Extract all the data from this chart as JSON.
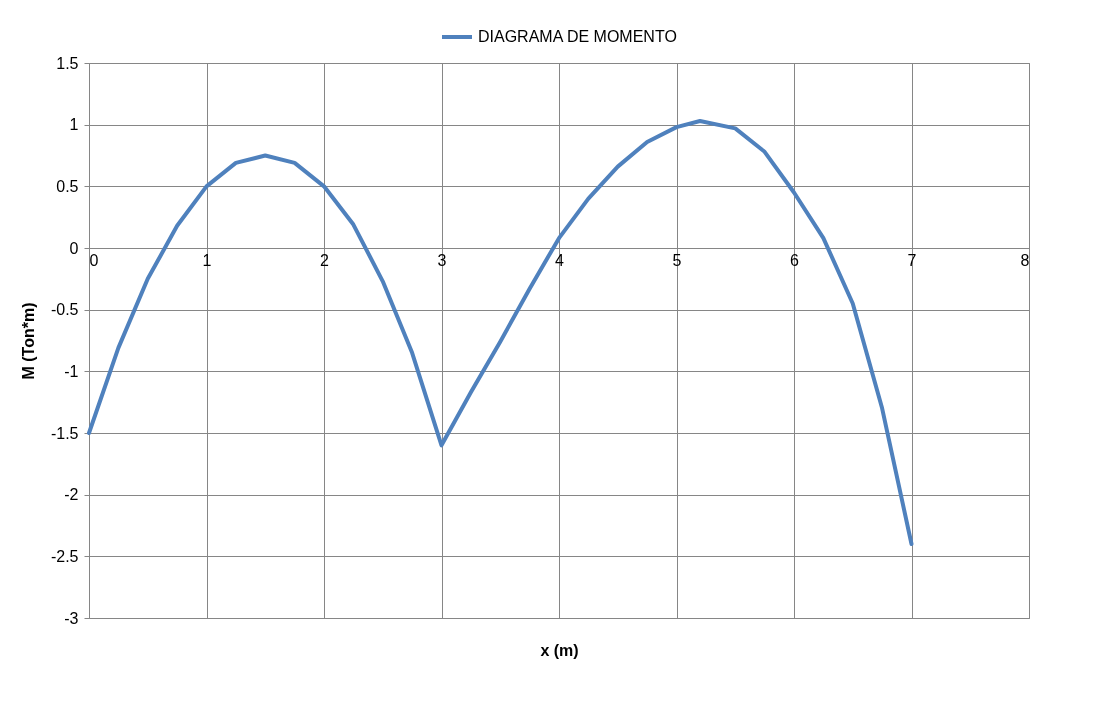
{
  "chart_data": {
    "type": "line",
    "xlabel": "x (m)",
    "ylabel": "M (Ton*m)",
    "x": [
      0,
      0.25,
      0.5,
      0.75,
      1,
      1.25,
      1.5,
      1.75,
      2,
      2.25,
      2.5,
      2.75,
      3,
      3.25,
      3.5,
      3.75,
      4,
      4.25,
      4.5,
      4.75,
      5,
      5.2,
      5.5,
      5.75,
      6,
      6.25,
      6.5,
      6.75,
      7
    ],
    "series": [
      {
        "name": "DIAGRAMA DE MOMENTO",
        "color": "#4f81bd",
        "values": [
          -1.5,
          -0.81,
          -0.25,
          0.18,
          0.5,
          0.69,
          0.75,
          0.69,
          0.5,
          0.19,
          -0.27,
          -0.85,
          -1.6,
          -1.17,
          -0.76,
          -0.33,
          0.08,
          0.4,
          0.66,
          0.86,
          0.98,
          1.03,
          0.97,
          0.78,
          0.45,
          0.08,
          -0.45,
          -1.3,
          -2.4
        ]
      }
    ],
    "xlim": [
      0,
      8
    ],
    "xticks": [
      0,
      1,
      2,
      3,
      4,
      5,
      6,
      7,
      8
    ],
    "ylim": [
      -3,
      1.5
    ],
    "yticks": [
      -3,
      -2.5,
      -2,
      -1.5,
      -1,
      -0.5,
      0,
      0.5,
      1,
      1.5
    ],
    "grid": true,
    "legend": "top",
    "marker": "none",
    "line_style": "solid"
  }
}
